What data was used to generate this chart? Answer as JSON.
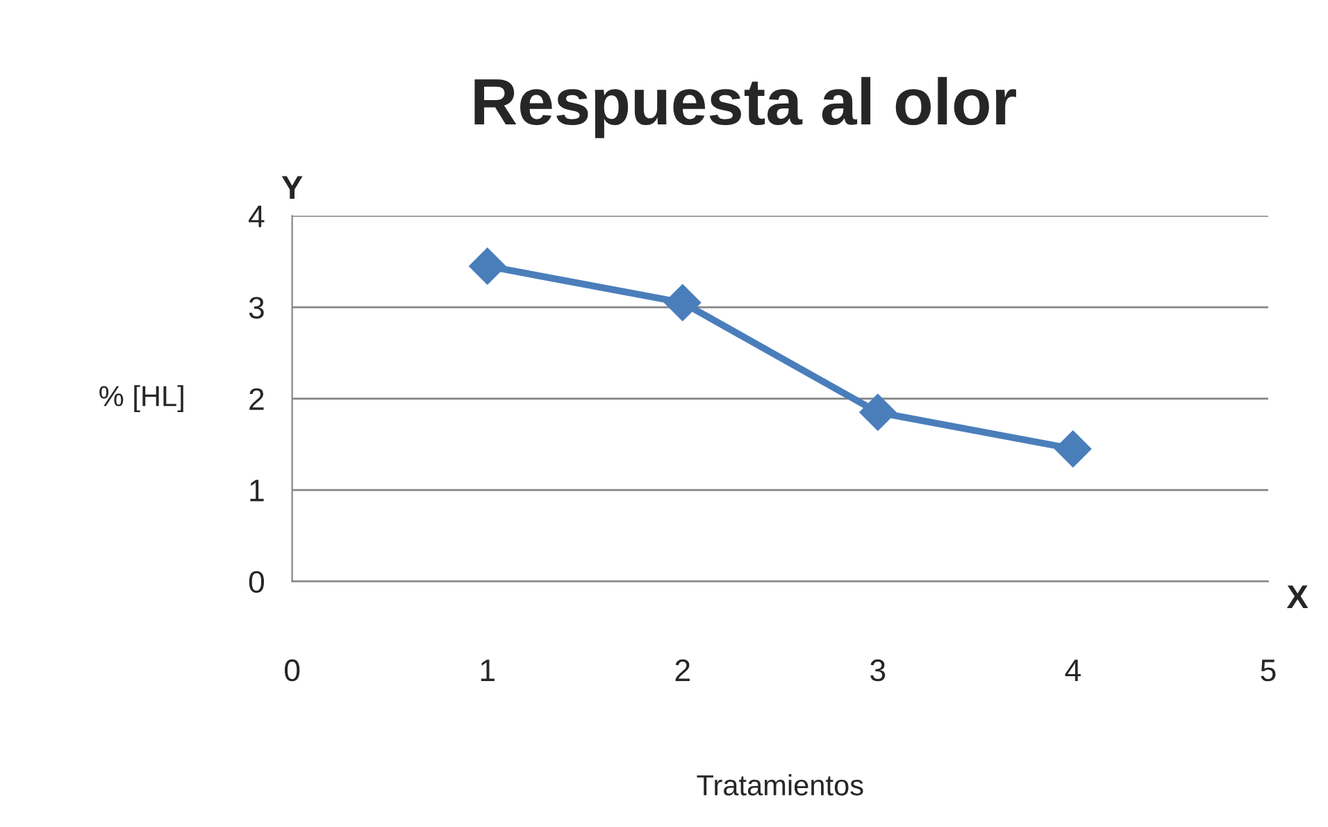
{
  "chart_data": {
    "type": "line",
    "title": "Respuesta al olor",
    "xlabel": "Tratamientos",
    "ylabel": "% [HL]",
    "annotations": [
      "Y",
      "X"
    ],
    "x": [
      1,
      2,
      3,
      4
    ],
    "series": [
      {
        "color": "#4a7ebb",
        "values": [
          3.45,
          3.05,
          1.85,
          1.45
        ]
      }
    ],
    "xlim": [
      0,
      5
    ],
    "xticks": [
      0,
      1,
      2,
      3,
      4,
      5
    ],
    "ylim": [
      0,
      4
    ],
    "yticks": [
      0,
      1,
      2,
      3,
      4
    ],
    "grid": "y",
    "legend": false,
    "marker": "diamond",
    "line_style": "solid"
  }
}
